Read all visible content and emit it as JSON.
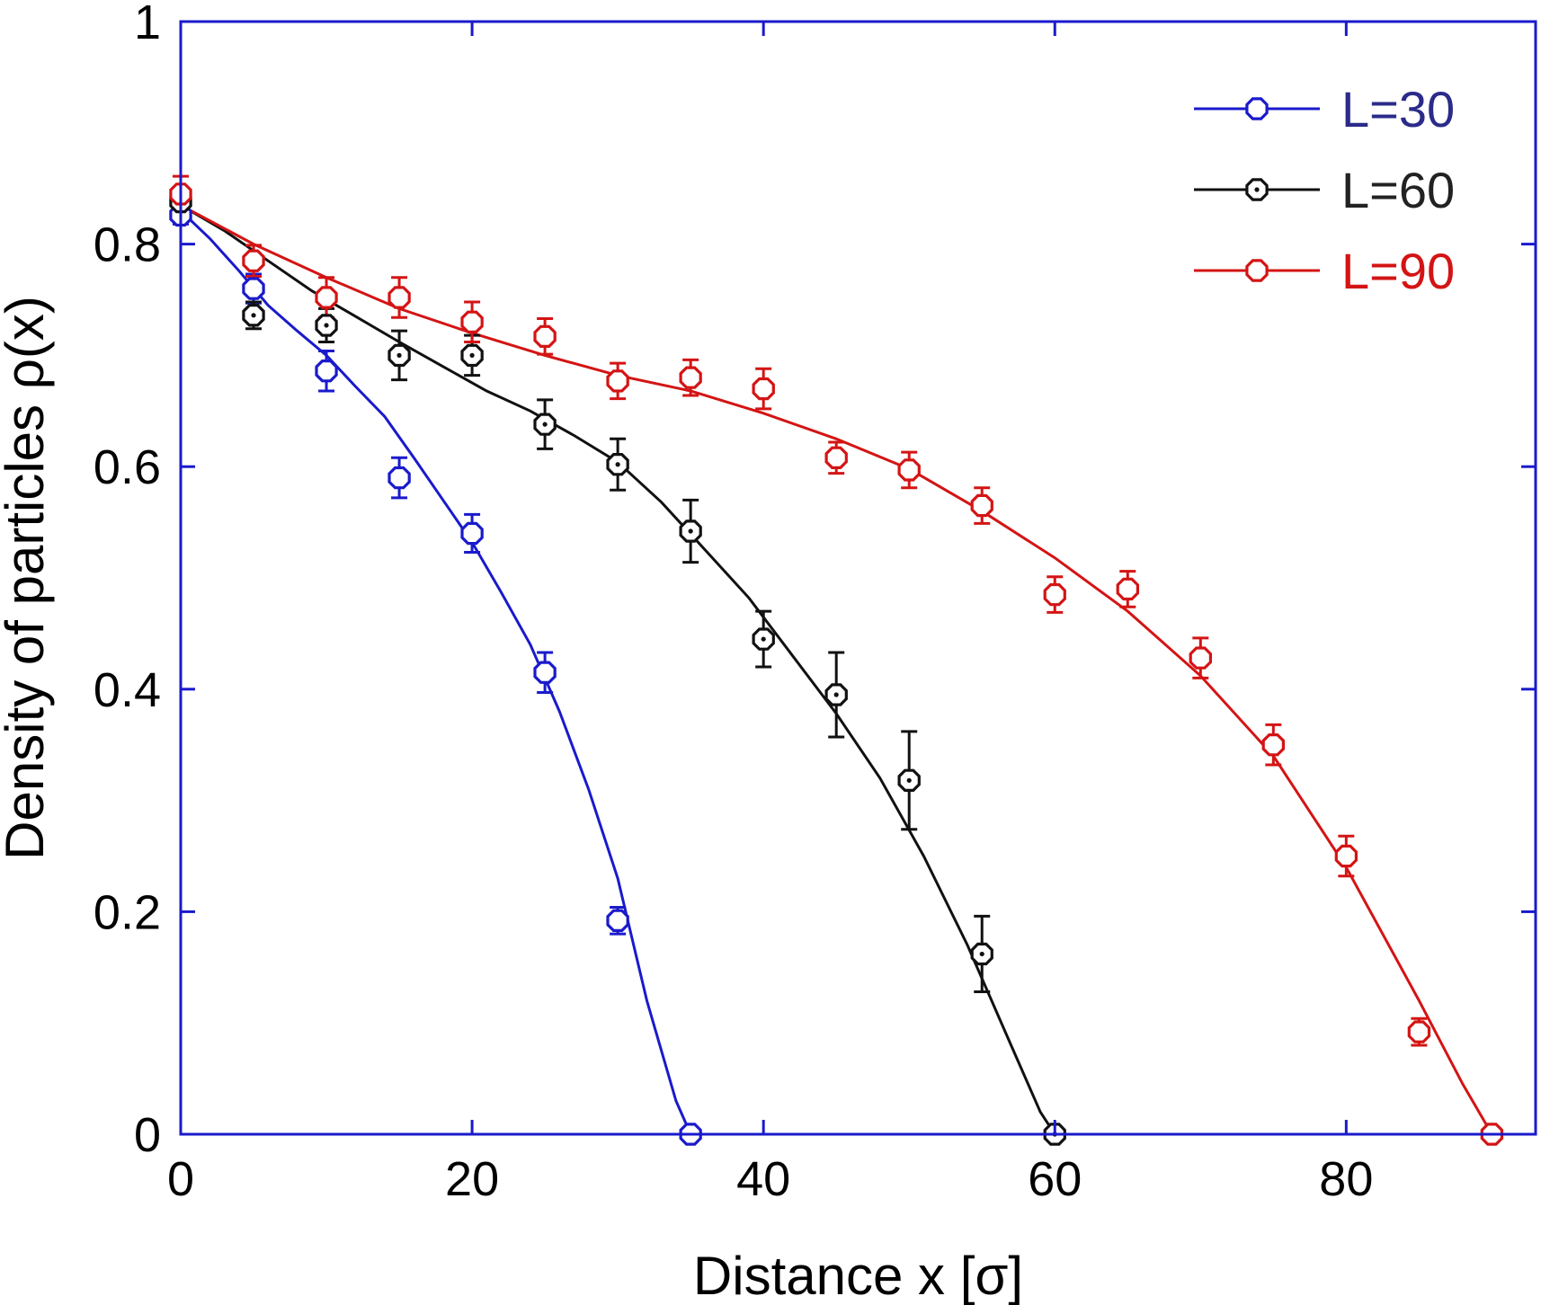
{
  "chart_data": {
    "type": "line",
    "xlabel": "Distance x [σ]",
    "ylabel": "Density of particles  ρ(x)",
    "xlim": [
      0,
      93
    ],
    "ylim": [
      0,
      1
    ],
    "x_ticks": [
      0,
      20,
      40,
      60,
      80
    ],
    "x_tick_labels": [
      "0",
      "20",
      "40",
      "60",
      "80"
    ],
    "y_ticks": [
      0,
      0.2,
      0.4,
      0.6,
      0.8,
      1
    ],
    "y_tick_labels": [
      "0",
      "0.2",
      "0.4",
      "0.6",
      "0.8",
      "1"
    ],
    "grid": false,
    "legend_position": "top-right",
    "axis_color": "#1a1acc",
    "series": [
      {
        "name": "L=30",
        "color": "#1a1acc",
        "legend_text_color": "#2b2b8a",
        "marker": "octagon",
        "x": [
          0,
          5,
          10,
          15,
          20,
          25,
          30,
          35
        ],
        "y": [
          0.826,
          0.76,
          0.686,
          0.59,
          0.54,
          0.415,
          0.192,
          0.0
        ],
        "yerr": [
          0.008,
          0.013,
          0.018,
          0.018,
          0.017,
          0.018,
          0.012,
          0.0
        ],
        "curve": {
          "x": [
            0,
            2,
            4,
            6,
            8,
            10,
            12,
            14,
            16,
            18,
            20,
            22,
            24,
            26,
            28,
            30,
            32,
            34,
            35
          ],
          "y": [
            0.83,
            0.805,
            0.776,
            0.745,
            0.722,
            0.7,
            0.672,
            0.645,
            0.608,
            0.57,
            0.532,
            0.487,
            0.44,
            0.38,
            0.31,
            0.23,
            0.12,
            0.03,
            0.0
          ]
        }
      },
      {
        "name": "L=60",
        "color": "#111111",
        "legend_text_color": "#222222",
        "marker": "octagon-dot",
        "x": [
          0,
          5,
          10,
          15,
          20,
          25,
          30,
          35,
          40,
          45,
          50,
          55,
          60
        ],
        "y": [
          0.838,
          0.736,
          0.727,
          0.7,
          0.7,
          0.638,
          0.602,
          0.542,
          0.445,
          0.395,
          0.318,
          0.162,
          0.0
        ],
        "yerr": [
          0.008,
          0.012,
          0.015,
          0.022,
          0.018,
          0.022,
          0.023,
          0.028,
          0.025,
          0.038,
          0.044,
          0.034,
          0.0
        ],
        "curve": {
          "x": [
            0,
            3,
            6,
            9,
            12,
            15,
            18,
            21,
            24,
            27,
            30,
            33,
            36,
            39,
            42,
            45,
            48,
            51,
            54,
            57,
            59,
            60
          ],
          "y": [
            0.835,
            0.812,
            0.785,
            0.758,
            0.735,
            0.712,
            0.69,
            0.668,
            0.65,
            0.628,
            0.604,
            0.568,
            0.525,
            0.482,
            0.43,
            0.378,
            0.32,
            0.25,
            0.17,
            0.08,
            0.02,
            0.0
          ]
        }
      },
      {
        "name": "L=90",
        "color": "#d41414",
        "legend_text_color": "#d41414",
        "marker": "octagon",
        "x": [
          0,
          5,
          10,
          15,
          20,
          25,
          30,
          35,
          40,
          45,
          50,
          55,
          60,
          65,
          70,
          75,
          80,
          85,
          90
        ],
        "y": [
          0.845,
          0.785,
          0.752,
          0.752,
          0.73,
          0.717,
          0.677,
          0.68,
          0.67,
          0.608,
          0.597,
          0.565,
          0.485,
          0.49,
          0.428,
          0.35,
          0.25,
          0.092,
          0.0
        ],
        "yerr": [
          0.016,
          0.014,
          0.018,
          0.018,
          0.018,
          0.016,
          0.016,
          0.016,
          0.018,
          0.014,
          0.016,
          0.016,
          0.016,
          0.016,
          0.018,
          0.018,
          0.018,
          0.012,
          0.0
        ],
        "curve": {
          "x": [
            0,
            5,
            10,
            15,
            20,
            25,
            30,
            35,
            40,
            45,
            50,
            55,
            60,
            65,
            70,
            75,
            80,
            85,
            88,
            90
          ],
          "y": [
            0.835,
            0.8,
            0.77,
            0.742,
            0.72,
            0.7,
            0.682,
            0.668,
            0.648,
            0.625,
            0.598,
            0.56,
            0.518,
            0.47,
            0.412,
            0.34,
            0.24,
            0.12,
            0.045,
            0.0
          ]
        }
      }
    ]
  }
}
